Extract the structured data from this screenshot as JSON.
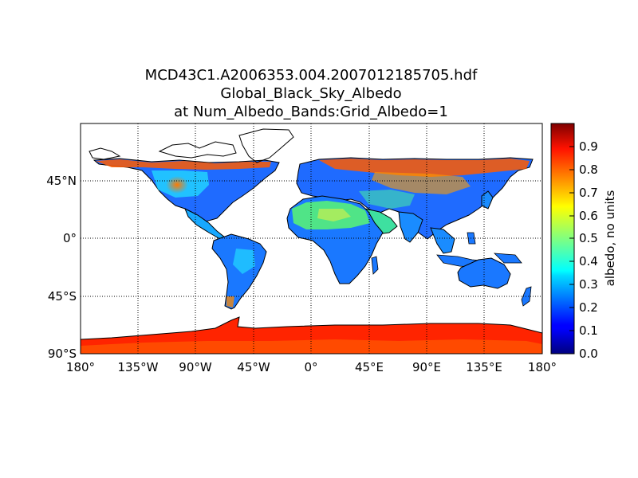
{
  "title": {
    "line1": "MCD43C1.A2006353.004.2007012185705.hdf",
    "line2": "Global_Black_Sky_Albedo",
    "line3": "at Num_Albedo_Bands:Grid_Albedo=1"
  },
  "map": {
    "projection": "cylindrical",
    "lon_range": [
      -180,
      180
    ],
    "lat_range": [
      -90,
      90
    ],
    "meridians": [
      -180,
      -135,
      -90,
      -45,
      0,
      45,
      90,
      135,
      180
    ],
    "parallels": [
      -90,
      -45,
      0,
      45
    ],
    "lon_labels": [
      "180°",
      "135°W",
      "90°W",
      "45°W",
      "0°",
      "45°E",
      "90°E",
      "135°E",
      "180°"
    ],
    "lat_labels": [
      "90°S",
      "45°S",
      "0°",
      "45°N"
    ],
    "grid": "dotted",
    "no_data_color": "#ffffff",
    "coastline_color": "#000000"
  },
  "colorbar": {
    "label": "albedo, no units",
    "min": 0.0,
    "max": 1.0,
    "ticks": [
      "0.0",
      "0.1",
      "0.2",
      "0.3",
      "0.4",
      "0.5",
      "0.6",
      "0.7",
      "0.8",
      "0.9"
    ],
    "colormap": "jet"
  }
}
